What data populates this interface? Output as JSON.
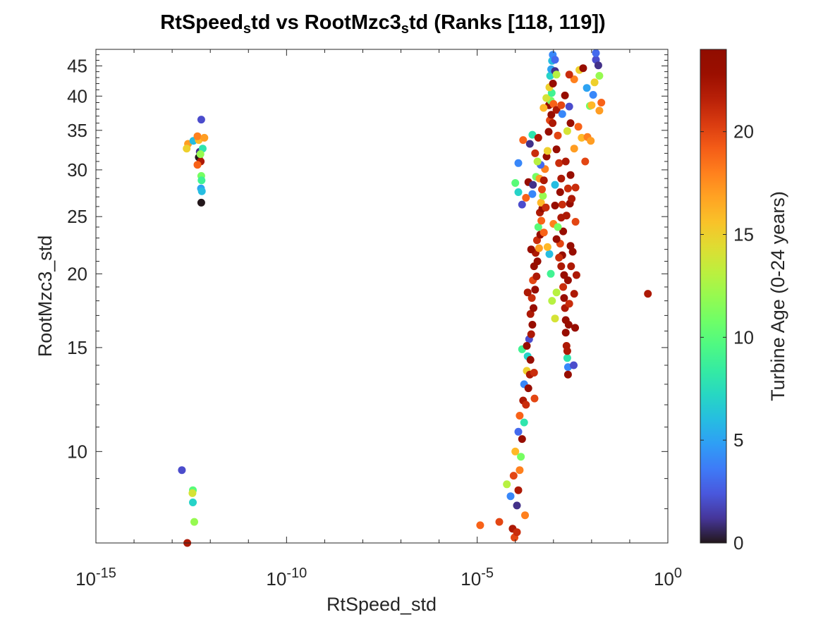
{
  "chart_data": {
    "type": "scatter",
    "title": {
      "parts": [
        {
          "text": "RtSpeed",
          "sub": false
        },
        {
          "text": "s",
          "sub": true
        },
        {
          "text": "td vs RootMzc3",
          "sub": false
        },
        {
          "text": "s",
          "sub": true
        },
        {
          "text": "td (Ranks [118, 119])",
          "sub": false
        }
      ]
    },
    "xlabel": "RtSpeed_std",
    "ylabel": "RootMzc3_std",
    "x_scale": "log",
    "y_scale": "log",
    "xlim": [
      1e-15,
      1
    ],
    "ylim": [
      7.0,
      48.0
    ],
    "x_ticks": [
      {
        "value": 1e-15,
        "base": "10",
        "exp": "-15"
      },
      {
        "value": 1e-10,
        "base": "10",
        "exp": "-10"
      },
      {
        "value": 1e-05,
        "base": "10",
        "exp": "-5"
      },
      {
        "value": 1,
        "base": "10",
        "exp": "0"
      }
    ],
    "y_ticks": [
      {
        "value": 10,
        "label": "10"
      },
      {
        "value": 15,
        "label": "15"
      },
      {
        "value": 20,
        "label": "20"
      },
      {
        "value": 25,
        "label": "25"
      },
      {
        "value": 30,
        "label": "30"
      },
      {
        "value": 35,
        "label": "35"
      },
      {
        "value": 40,
        "label": "40"
      },
      {
        "value": 45,
        "label": "45"
      }
    ],
    "grid": false,
    "colorbar": {
      "label": "Turbine Age (0-24 years)",
      "range": [
        0,
        24
      ],
      "ticks": [
        {
          "value": 0,
          "label": "0"
        },
        {
          "value": 5,
          "label": "5"
        },
        {
          "value": 10,
          "label": "10"
        },
        {
          "value": 15,
          "label": "15"
        },
        {
          "value": 20,
          "label": "20"
        }
      ],
      "colormap": "turbo"
    },
    "points": [
      [
        2.5e-13,
        7.0,
        22
      ],
      [
        1.8e-13,
        9.3,
        2
      ],
      [
        3.5e-13,
        8.2,
        7
      ],
      [
        3.8e-13,
        7.6,
        12
      ],
      [
        3.5e-13,
        8.6,
        10
      ],
      [
        3.4e-13,
        8.5,
        14
      ],
      [
        2.6e-13,
        33.2,
        17
      ],
      [
        2.4e-13,
        32.6,
        15
      ],
      [
        3.6e-13,
        33.6,
        6
      ],
      [
        5e-13,
        33.7,
        16
      ],
      [
        4.6e-13,
        34.2,
        18
      ],
      [
        5.3e-13,
        32.2,
        1
      ],
      [
        5e-13,
        31.5,
        0
      ],
      [
        5.6e-13,
        31.0,
        22
      ],
      [
        4.6e-13,
        30.6,
        19
      ],
      [
        6.3e-13,
        32.6,
        8
      ],
      [
        5.5e-13,
        31.9,
        12
      ],
      [
        5.8e-13,
        29.3,
        11
      ],
      [
        5.9e-13,
        28.8,
        9
      ],
      [
        5.7e-13,
        27.9,
        5
      ],
      [
        6e-13,
        27.6,
        6
      ],
      [
        5.8e-13,
        26.4,
        0
      ],
      [
        5.8e-13,
        36.5,
        2
      ],
      [
        7e-13,
        34.0,
        17
      ],
      [
        1.2e-05,
        7.5,
        19
      ],
      [
        3.8e-05,
        7.6,
        20
      ],
      [
        8.5e-05,
        7.4,
        22
      ],
      [
        9.5e-05,
        7.15,
        20
      ],
      [
        0.00011,
        7.3,
        21
      ],
      [
        0.00018,
        7.8,
        18
      ],
      [
        6e-05,
        8.8,
        13
      ],
      [
        7.5e-05,
        8.4,
        4
      ],
      [
        0.00011,
        8.1,
        1
      ],
      [
        0.00012,
        8.6,
        22
      ],
      [
        9e-05,
        9.1,
        20
      ],
      [
        0.00013,
        9.3,
        18
      ],
      [
        0.0001,
        10.0,
        16
      ],
      [
        0.00014,
        9.8,
        11
      ],
      [
        0.00012,
        10.8,
        3
      ],
      [
        0.00015,
        10.5,
        23
      ],
      [
        0.00013,
        11.5,
        19
      ],
      [
        0.00017,
        11.2,
        8
      ],
      [
        0.00016,
        12.2,
        22
      ],
      [
        0.00019,
        12.0,
        21
      ],
      [
        0.00017,
        13.0,
        4
      ],
      [
        0.00022,
        12.8,
        23
      ],
      [
        0.0002,
        13.7,
        15
      ],
      [
        0.00024,
        13.5,
        22
      ],
      [
        0.00021,
        14.5,
        7
      ],
      [
        0.00025,
        14.3,
        23
      ],
      [
        0.00023,
        15.5,
        2
      ],
      [
        0.00026,
        15.8,
        22
      ],
      [
        0.00032,
        12.3,
        20
      ],
      [
        0.00031,
        13.6,
        21
      ],
      [
        0.00015,
        14.9,
        9
      ],
      [
        0.0002,
        15.1,
        23
      ],
      [
        0.00028,
        16.4,
        23
      ],
      [
        0.00025,
        17.1,
        22
      ],
      [
        0.0003,
        17.5,
        23
      ],
      [
        0.00027,
        18.2,
        21
      ],
      [
        0.00021,
        18.6,
        22
      ],
      [
        0.00033,
        18.8,
        23
      ],
      [
        0.00029,
        19.5,
        20
      ],
      [
        0.00036,
        19.8,
        22
      ],
      [
        0.00031,
        20.6,
        23
      ],
      [
        0.00038,
        21.0,
        23
      ],
      [
        0.00034,
        21.7,
        22
      ],
      [
        0.00042,
        22.1,
        17
      ],
      [
        0.00026,
        22.0,
        23
      ],
      [
        0.00037,
        22.8,
        21
      ],
      [
        0.00045,
        23.3,
        23
      ],
      [
        0.0004,
        24.0,
        10
      ],
      [
        0.00048,
        24.6,
        19
      ],
      [
        0.00044,
        25.4,
        22
      ],
      [
        0.00051,
        25.8,
        23
      ],
      [
        0.00047,
        26.4,
        16
      ],
      [
        0.00053,
        27.1,
        12
      ],
      [
        0.0005,
        27.8,
        20
      ],
      [
        0.00028,
        27.3,
        4
      ],
      [
        0.00012,
        27.5,
        7
      ],
      [
        0.00015,
        26.2,
        2
      ],
      [
        0.00019,
        26.9,
        19
      ],
      [
        0.00022,
        28.6,
        23
      ],
      [
        0.00029,
        28.3,
        1
      ],
      [
        0.00035,
        29.2,
        11
      ],
      [
        0.00043,
        29.0,
        17
      ],
      [
        0.00056,
        28.8,
        22
      ],
      [
        0.0006,
        30.1,
        18
      ],
      [
        0.00046,
        30.6,
        3
      ],
      [
        0.00038,
        31.0,
        13
      ],
      [
        0.00066,
        31.6,
        23
      ],
      [
        0.0007,
        32.3,
        15
      ],
      [
        0.00033,
        32.0,
        21
      ],
      [
        0.00024,
        33.2,
        1
      ],
      [
        0.00028,
        34.4,
        8
      ],
      [
        0.0004,
        34.0,
        22
      ],
      [
        0.00016,
        33.7,
        19
      ],
      [
        0.00012,
        30.8,
        4
      ],
      [
        0.0001,
        28.5,
        10
      ],
      [
        0.00075,
        34.8,
        23
      ],
      [
        0.0008,
        36.4,
        20
      ],
      [
        0.00088,
        37.2,
        23
      ],
      [
        0.00095,
        36.0,
        22
      ],
      [
        0.00076,
        38.6,
        23
      ],
      [
        0.00085,
        39.3,
        11
      ],
      [
        0.00065,
        39.7,
        14
      ],
      [
        0.00055,
        38.2,
        16
      ],
      [
        0.0009,
        40.5,
        9
      ],
      [
        0.00078,
        41.4,
        15
      ],
      [
        0.00097,
        42.0,
        23
      ],
      [
        0.00082,
        43.3,
        7
      ],
      [
        0.00087,
        44.4,
        5
      ],
      [
        0.00092,
        45.9,
        6
      ],
      [
        0.00096,
        47.0,
        4
      ],
      [
        0.0011,
        46.1,
        3
      ],
      [
        0.0011,
        44.1,
        1
      ],
      [
        0.0012,
        43.5,
        13
      ],
      [
        0.001,
        38.8,
        19
      ],
      [
        0.0012,
        37.9,
        22
      ],
      [
        0.0016,
        38.6,
        20
      ],
      [
        0.002,
        40.1,
        23
      ],
      [
        0.0017,
        37.3,
        4
      ],
      [
        0.0026,
        38.4,
        2
      ],
      [
        0.0035,
        42.7,
        18
      ],
      [
        0.0026,
        43.5,
        21
      ],
      [
        0.0048,
        44.3,
        15
      ],
      [
        0.006,
        44.6,
        23
      ],
      [
        0.0075,
        41.3,
        5
      ],
      [
        0.009,
        38.5,
        11
      ],
      [
        0.011,
        40.2,
        4
      ],
      [
        0.013,
        46.1,
        2
      ],
      [
        0.015,
        45.1,
        1
      ],
      [
        0.016,
        43.3,
        12
      ],
      [
        0.018,
        39.0,
        19
      ],
      [
        0.016,
        37.8,
        17
      ],
      [
        0.01,
        38.6,
        16
      ],
      [
        0.012,
        42.2,
        15
      ],
      [
        0.013,
        47.3,
        3
      ],
      [
        0.0045,
        35.5,
        19
      ],
      [
        0.0055,
        34.0,
        16
      ],
      [
        0.0078,
        34.1,
        18
      ],
      [
        0.0095,
        33.6,
        17
      ],
      [
        0.0068,
        31.0,
        20
      ],
      [
        0.0035,
        32.6,
        17
      ],
      [
        0.0028,
        36.0,
        23
      ],
      [
        0.0023,
        34.9,
        14
      ],
      [
        0.0012,
        32.5,
        23
      ],
      [
        0.0014,
        30.8,
        21
      ],
      [
        0.0016,
        29.0,
        22
      ],
      [
        0.0015,
        27.5,
        23
      ],
      [
        0.0017,
        26.2,
        21
      ],
      [
        0.0016,
        24.9,
        22
      ],
      [
        0.0018,
        23.6,
        23
      ],
      [
        0.0015,
        22.5,
        20
      ],
      [
        0.0017,
        21.5,
        23
      ],
      [
        0.0016,
        20.6,
        22
      ],
      [
        0.0019,
        19.9,
        23
      ],
      [
        0.0018,
        19.0,
        21
      ],
      [
        0.0019,
        18.2,
        23
      ],
      [
        0.002,
        17.5,
        22
      ],
      [
        0.0021,
        16.7,
        23
      ],
      [
        0.0021,
        15.9,
        23
      ],
      [
        0.0022,
        15.1,
        22
      ],
      [
        0.0023,
        14.4,
        8
      ],
      [
        0.0024,
        13.9,
        4
      ],
      [
        0.0024,
        13.5,
        23
      ],
      [
        0.0023,
        14.8,
        22
      ],
      [
        0.0025,
        16.4,
        23
      ],
      [
        0.0026,
        17.8,
        21
      ],
      [
        0.0024,
        19.5,
        23
      ],
      [
        0.0029,
        20.6,
        22
      ],
      [
        0.0028,
        22.3,
        23
      ],
      [
        0.0022,
        25.1,
        22
      ],
      [
        0.0027,
        26.3,
        23
      ],
      [
        0.0024,
        27.9,
        21
      ],
      [
        0.0028,
        29.4,
        23
      ],
      [
        0.0021,
        31.0,
        22
      ],
      [
        0.0013,
        34.3,
        20
      ],
      [
        0.0011,
        28.3,
        6
      ],
      [
        0.001,
        24.3,
        18
      ],
      [
        0.0012,
        22.9,
        23
      ],
      [
        0.0014,
        21.3,
        21
      ],
      [
        0.0035,
        18.5,
        22
      ],
      [
        0.0032,
        21.8,
        23
      ],
      [
        0.0038,
        24.5,
        20
      ],
      [
        0.003,
        26.8,
        22
      ],
      [
        0.0038,
        28.0,
        21
      ],
      [
        0.004,
        19.9,
        22
      ],
      [
        0.0037,
        16.2,
        23
      ],
      [
        0.0034,
        14.0,
        2
      ],
      [
        0.0011,
        16.8,
        14
      ],
      [
        0.0012,
        18.6,
        13
      ],
      [
        0.0013,
        24.0,
        11
      ],
      [
        0.00078,
        21.6,
        6
      ],
      [
        0.00085,
        20.0,
        9
      ],
      [
        0.00092,
        18.0,
        13
      ],
      [
        0.00056,
        23.5,
        19
      ],
      [
        0.00063,
        25.9,
        21
      ],
      [
        0.0007,
        22.2,
        16
      ],
      [
        0.0011,
        26.1,
        23
      ],
      [
        0.3,
        18.5,
        22
      ]
    ]
  }
}
